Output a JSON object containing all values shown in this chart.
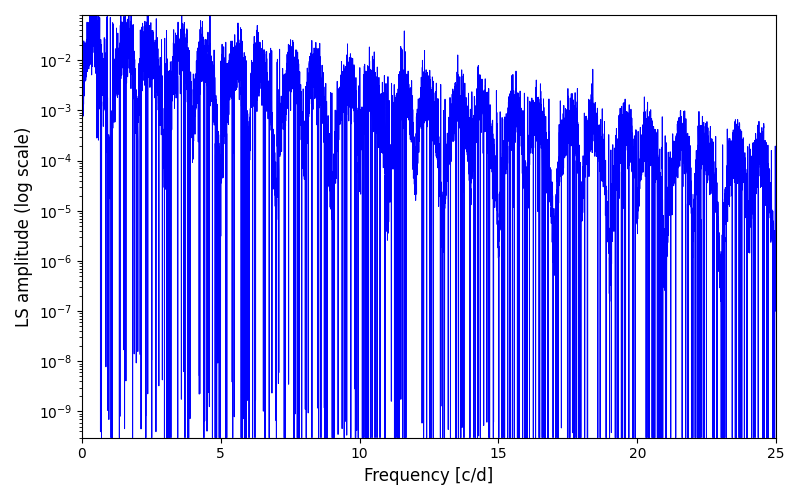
{
  "xlabel": "Frequency [c/d]",
  "ylabel": "LS amplitude (log scale)",
  "xlim": [
    0,
    25
  ],
  "ymin": 3e-10,
  "ymax": 0.08,
  "line_color": "#0000ff",
  "line_width": 0.7,
  "figsize": [
    8.0,
    5.0
  ],
  "dpi": 100,
  "background_color": "#ffffff",
  "seed": 12345,
  "n_points": 10000,
  "freq_max": 25.0
}
